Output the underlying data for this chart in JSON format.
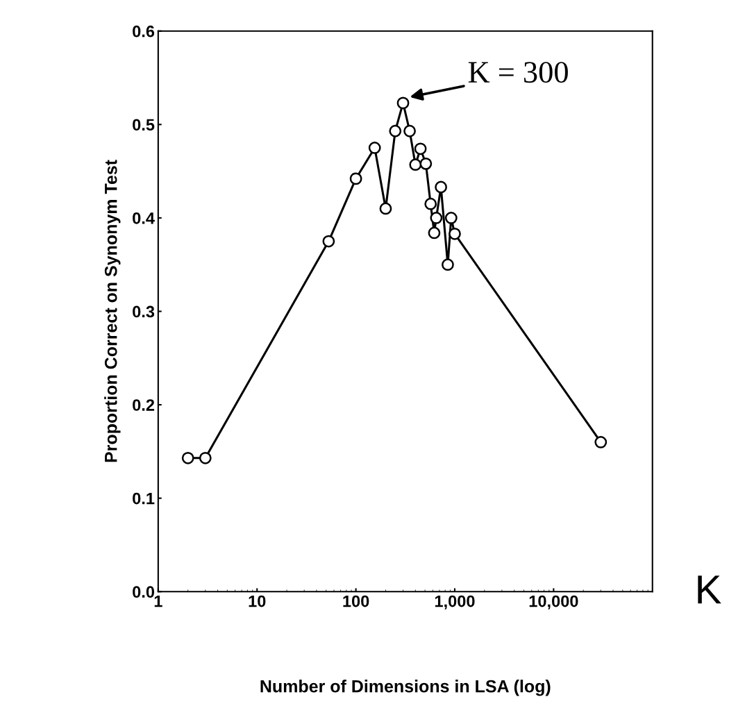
{
  "chart_data": {
    "type": "line",
    "xlabel": "Number of Dimensions in LSA (log)",
    "ylabel": "Proportion Correct on Synonym Test",
    "x": [
      2,
      3,
      53,
      100,
      155,
      200,
      250,
      300,
      350,
      400,
      450,
      510,
      570,
      620,
      650,
      725,
      850,
      920,
      1000,
      30000
    ],
    "values": [
      0.143,
      0.143,
      0.375,
      0.442,
      0.475,
      0.41,
      0.493,
      0.523,
      0.493,
      0.457,
      0.474,
      0.458,
      0.415,
      0.384,
      0.4,
      0.433,
      0.35,
      0.4,
      0.383,
      0.16
    ],
    "color": "#000000",
    "marker": "circle",
    "line_style": "solid",
    "log": "x",
    "grid": false,
    "xlim": [
      1,
      100000
    ],
    "xticks": [
      1,
      10,
      100,
      {
        "value": 1000,
        "label": "1,000"
      },
      {
        "value": 10000,
        "label": "10,000"
      }
    ],
    "ylim": [
      0,
      0.6
    ],
    "yticks": [
      {
        "value": 0,
        "label": "0.0"
      },
      0.1,
      0.2,
      0.3,
      0.4,
      0.5,
      0.6
    ],
    "annotations": [
      {
        "text": "K = 300",
        "x": 300,
        "y": 0.523
      },
      "K"
    ]
  }
}
